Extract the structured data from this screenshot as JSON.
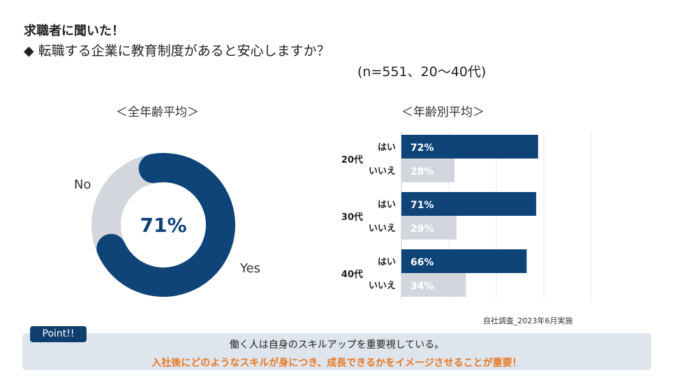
{
  "header": {
    "label": "求職者に聞いた！",
    "question": "◆ 転職する企業に教育制度があると安心しますか？",
    "sample": "(n=551、20〜40代)"
  },
  "colors": {
    "yes": "#0e4478",
    "no": "#d3d7dd",
    "accent": "#e87722",
    "panel": "#dfe5ed"
  },
  "chart_data": [
    {
      "type": "pie",
      "title": "＜全年齢平均＞",
      "slices": [
        {
          "label": "Yes",
          "value": 71
        },
        {
          "label": "No",
          "value": 29
        }
      ],
      "center_label": "71%"
    },
    {
      "type": "bar",
      "orientation": "horizontal",
      "title": "＜年齢別平均＞",
      "categories": [
        "20代",
        "30代",
        "40代"
      ],
      "series": [
        {
          "name": "はい",
          "values": [
            72,
            71,
            66
          ],
          "labels": [
            "72%",
            "71%",
            "66%"
          ]
        },
        {
          "name": "いいえ",
          "values": [
            28,
            29,
            34
          ],
          "labels": [
            "28%",
            "29%",
            "34%"
          ]
        }
      ],
      "xlim": [
        0,
        100
      ],
      "grid": true
    }
  ],
  "source": "自社調査_2023年6月実施",
  "point": {
    "badge": "Point!!",
    "line1": "働く人は自身のスキルアップを重要視している。",
    "line2": "入社後にどのようなスキルが身につき、成長できるかをイメージさせることが重要！"
  }
}
